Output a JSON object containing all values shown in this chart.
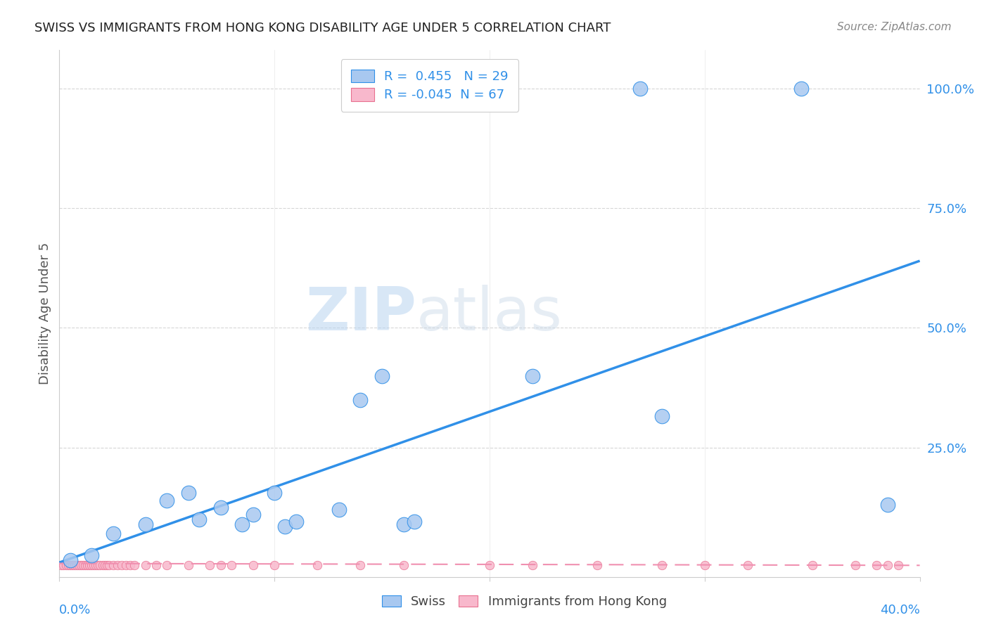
{
  "title": "SWISS VS IMMIGRANTS FROM HONG KONG DISABILITY AGE UNDER 5 CORRELATION CHART",
  "source": "Source: ZipAtlas.com",
  "ylabel": "Disability Age Under 5",
  "background_color": "#ffffff",
  "watermark_line1": "ZIP",
  "watermark_line2": "atlas",
  "legend": {
    "swiss_R": 0.455,
    "swiss_N": 29,
    "hk_R": -0.045,
    "hk_N": 67,
    "swiss_color": "#a8c8f0",
    "hk_color": "#f8b8cc"
  },
  "swiss_line_color": "#3090e8",
  "hk_line_color": "#f090b0",
  "grid_color": "#cccccc",
  "ytick_labels": [
    "100.0%",
    "75.0%",
    "50.0%",
    "25.0%"
  ],
  "ytick_values": [
    1.0,
    0.75,
    0.5,
    0.25
  ],
  "xlim": [
    0.0,
    0.4
  ],
  "ylim": [
    -0.02,
    1.08
  ],
  "swiss_scatter_x": [
    0.27,
    0.345,
    0.005,
    0.015,
    0.025,
    0.04,
    0.05,
    0.06,
    0.065,
    0.075,
    0.085,
    0.09,
    0.1,
    0.105,
    0.11,
    0.13,
    0.14,
    0.15,
    0.16,
    0.165,
    0.22,
    0.28,
    0.385
  ],
  "swiss_scatter_y": [
    1.0,
    1.0,
    0.015,
    0.025,
    0.07,
    0.09,
    0.14,
    0.155,
    0.1,
    0.125,
    0.09,
    0.11,
    0.155,
    0.085,
    0.095,
    0.12,
    0.35,
    0.4,
    0.09,
    0.095,
    0.4,
    0.315,
    0.13
  ],
  "hk_scatter_x": [
    0.001,
    0.002,
    0.003,
    0.004,
    0.005,
    0.006,
    0.007,
    0.008,
    0.009,
    0.01,
    0.011,
    0.012,
    0.013,
    0.014,
    0.015,
    0.016,
    0.017,
    0.018,
    0.019,
    0.02,
    0.021,
    0.022,
    0.023,
    0.025,
    0.027,
    0.029,
    0.031,
    0.033,
    0.035,
    0.04,
    0.045,
    0.05,
    0.06,
    0.07,
    0.075,
    0.08,
    0.09,
    0.1,
    0.12,
    0.14,
    0.16,
    0.2,
    0.22,
    0.25,
    0.28,
    0.3,
    0.32,
    0.35,
    0.37,
    0.38,
    0.385,
    0.39
  ],
  "hk_scatter_y": [
    0.005,
    0.005,
    0.005,
    0.005,
    0.005,
    0.005,
    0.005,
    0.005,
    0.005,
    0.005,
    0.005,
    0.005,
    0.005,
    0.005,
    0.005,
    0.005,
    0.005,
    0.005,
    0.005,
    0.005,
    0.005,
    0.005,
    0.005,
    0.005,
    0.005,
    0.005,
    0.005,
    0.005,
    0.005,
    0.005,
    0.005,
    0.005,
    0.005,
    0.005,
    0.005,
    0.005,
    0.005,
    0.005,
    0.005,
    0.005,
    0.005,
    0.005,
    0.005,
    0.005,
    0.005,
    0.005,
    0.005,
    0.005,
    0.005,
    0.005,
    0.005,
    0.005
  ],
  "swiss_line_x": [
    0.0,
    0.4
  ],
  "swiss_line_y": [
    0.01,
    0.64
  ],
  "hk_line_x": [
    0.0,
    0.4
  ],
  "hk_line_y": [
    0.008,
    0.004
  ]
}
